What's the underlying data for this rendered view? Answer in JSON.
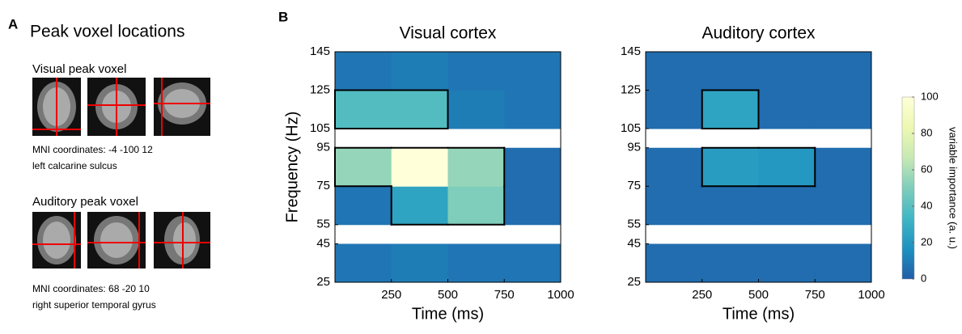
{
  "panel_a": {
    "label": "A",
    "title": "Peak voxel locations",
    "sections": [
      {
        "heading": "Visual peak voxel",
        "coords": "MNI coordinates: -4 -100 12",
        "region": "left calcarine sulcus"
      },
      {
        "heading": "Auditory peak voxel",
        "coords": "MNI coordinates: 68 -20 10",
        "region": "right superior temporal gyrus"
      }
    ]
  },
  "panel_b_label": "B",
  "chart_data": [
    {
      "type": "heatmap",
      "title": "Visual cortex",
      "x_label": "Time (ms)",
      "y_label": "Frequency (Hz)",
      "xbins": [
        0,
        250,
        500,
        750,
        1000
      ],
      "xlim": [
        0,
        1000
      ],
      "xticks": [
        250,
        500,
        750,
        1000
      ],
      "ybins": [
        25,
        45,
        55,
        75,
        95,
        105,
        125,
        145
      ],
      "ylim": [
        25,
        145
      ],
      "yticks": [
        25,
        45,
        55,
        75,
        95,
        105,
        125,
        145
      ],
      "values": [
        [
          8,
          10,
          8,
          8
        ],
        [
          null,
          null,
          null,
          null
        ],
        [
          8,
          25,
          50,
          5
        ],
        [
          55,
          100,
          55,
          5
        ],
        [
          null,
          null,
          null,
          null
        ],
        [
          38,
          38,
          10,
          8
        ],
        [
          8,
          10,
          8,
          8
        ]
      ],
      "significant": [
        [
          false,
          false,
          false,
          false
        ],
        [
          false,
          false,
          false,
          false
        ],
        [
          false,
          true,
          true,
          false
        ],
        [
          true,
          true,
          true,
          false
        ],
        [
          false,
          false,
          false,
          false
        ],
        [
          true,
          true,
          false,
          false
        ],
        [
          false,
          false,
          false,
          false
        ]
      ]
    },
    {
      "type": "heatmap",
      "title": "Auditory cortex",
      "x_label": "Time (ms)",
      "xbins": [
        0,
        250,
        500,
        750,
        1000
      ],
      "xlim": [
        0,
        1000
      ],
      "xticks": [
        250,
        500,
        750,
        1000
      ],
      "ybins": [
        25,
        45,
        55,
        75,
        95,
        105,
        125,
        145
      ],
      "ylim": [
        25,
        145
      ],
      "yticks": [
        25,
        45,
        55,
        75,
        95,
        105,
        125,
        145
      ],
      "values": [
        [
          5,
          5,
          5,
          5
        ],
        [
          null,
          null,
          null,
          null
        ],
        [
          5,
          5,
          5,
          5
        ],
        [
          5,
          22,
          20,
          5
        ],
        [
          null,
          null,
          null,
          null
        ],
        [
          5,
          25,
          5,
          5
        ],
        [
          5,
          5,
          5,
          5
        ]
      ],
      "significant": [
        [
          false,
          false,
          false,
          false
        ],
        [
          false,
          false,
          false,
          false
        ],
        [
          false,
          false,
          false,
          false
        ],
        [
          false,
          true,
          true,
          false
        ],
        [
          false,
          false,
          false,
          false
        ],
        [
          false,
          true,
          false,
          false
        ],
        [
          false,
          false,
          false,
          false
        ]
      ]
    },
    {
      "type": "colorbar",
      "label": "variable importance (a. u.)",
      "clim": [
        0,
        100
      ],
      "ticks": [
        0,
        20,
        40,
        60,
        80,
        100
      ],
      "colormap": [
        "#225ea8",
        "#1d91c0",
        "#41b6c4",
        "#7fcdbb",
        "#c7e9b4",
        "#edf8b1",
        "#ffffd9"
      ]
    }
  ]
}
